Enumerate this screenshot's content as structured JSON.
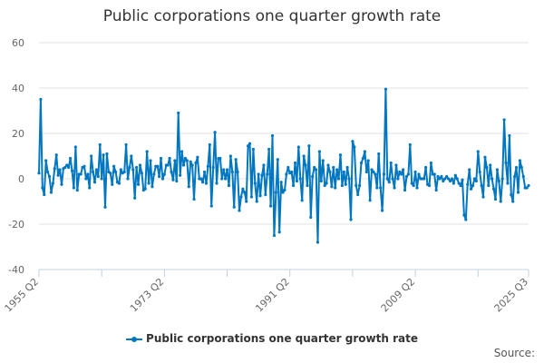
{
  "chart_data": {
    "type": "line",
    "title": "Public corporations one quarter growth rate",
    "xlabel": "",
    "ylabel": "",
    "ylim": [
      -40,
      60
    ],
    "yticks": [
      -40,
      -20,
      0,
      20,
      40,
      60
    ],
    "x_start": "1955 Q2",
    "x_end": "2025 Q3",
    "xtick_labels": [
      {
        "label": "1955 Q2",
        "index": 0
      },
      {
        "label": "1973 Q2",
        "index": 72
      },
      {
        "label": "1991 Q2",
        "index": 144
      },
      {
        "label": "2009 Q2",
        "index": 216
      },
      {
        "label": "2025 Q3",
        "index": 281
      }
    ],
    "grid": true,
    "legend_position": "bottom",
    "series": [
      {
        "name": "Public corporations one quarter growth rate",
        "color": "#0077c0",
        "values": [
          2.5,
          35,
          -4,
          -7,
          8,
          3,
          1,
          -6,
          -2,
          4.5,
          10.5,
          1.5,
          4,
          -2.5,
          4.5,
          5,
          6,
          5,
          9,
          3.5,
          -4,
          14,
          -5,
          2,
          2,
          5,
          5.5,
          0,
          2,
          -4,
          10,
          3,
          -1.5,
          4,
          1,
          15,
          0,
          10.5,
          -12.5,
          11,
          3,
          2.5,
          -2.5,
          5.5,
          3,
          -1.5,
          -2,
          4,
          2.5,
          3,
          15,
          0,
          5,
          10,
          4,
          -8.5,
          5,
          -2.5,
          6,
          2.5,
          -5,
          -4.5,
          12,
          -2,
          8,
          -3.5,
          2,
          5.5,
          5.5,
          1,
          9,
          0,
          2,
          6,
          6,
          9,
          3,
          -0.5,
          8,
          -1,
          29,
          1.5,
          12,
          6,
          9,
          8,
          -3.5,
          7.5,
          6,
          -9,
          7,
          9.5,
          0,
          0,
          -1.5,
          3,
          -2,
          5.5,
          15,
          -12,
          5,
          20.5,
          -2,
          9,
          9,
          0,
          4,
          0,
          4,
          -3,
          10,
          3,
          -12.5,
          8.5,
          3,
          -14,
          -8,
          -4.5,
          -6,
          -10,
          14.5,
          15.5,
          -8,
          13,
          -2,
          -10,
          2,
          -7.5,
          1.5,
          6,
          -7,
          2,
          13,
          -12,
          19,
          -25,
          -6,
          8.5,
          -23.5,
          -1.5,
          -6,
          -5,
          2,
          5,
          2.5,
          3,
          -3,
          7,
          -1,
          14,
          0,
          -9.5,
          10,
          6,
          -3,
          14.5,
          -17,
          1,
          5,
          4,
          -28,
          12,
          -1,
          8,
          -3,
          -2,
          6,
          3,
          -3.5,
          5,
          -4,
          4,
          0,
          10.5,
          -3,
          3,
          -2.5,
          5,
          0,
          -18,
          16.5,
          14,
          -3,
          -7,
          -3,
          7,
          9,
          12,
          3,
          8,
          -9.5,
          4,
          3,
          2,
          -4,
          11,
          -4,
          -14,
          2,
          39.5,
          0,
          -1.5,
          7,
          0,
          -4,
          6,
          0,
          3,
          2,
          4,
          -5,
          1,
          2,
          15,
          -2,
          -3,
          3,
          -4,
          2,
          0,
          0,
          0,
          5,
          -2.5,
          -3,
          7,
          2,
          2,
          -5,
          1,
          0,
          1,
          -1,
          0,
          1,
          0,
          -1,
          0,
          -2,
          1.5,
          0,
          -2,
          -3,
          -0.5,
          -16,
          -18,
          -2.5,
          4,
          -4.5,
          -3,
          0,
          -1,
          12,
          3,
          -3,
          -8,
          9.5,
          5,
          -3,
          6,
          0,
          -4.5,
          -9,
          4,
          -1,
          -10,
          0,
          26,
          7,
          -2,
          19,
          -7,
          -10,
          1,
          5,
          -6,
          8,
          5,
          1,
          -4,
          -4,
          -3
        ]
      }
    ]
  },
  "source_label": "Source:"
}
